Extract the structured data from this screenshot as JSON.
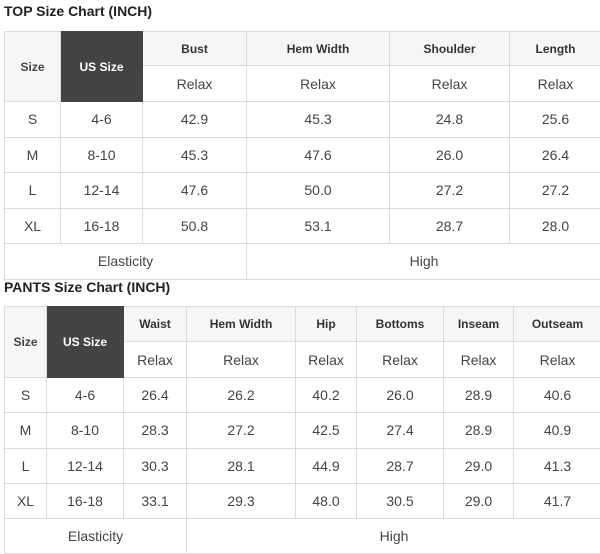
{
  "top": {
    "title": "TOP Size Chart (INCH)",
    "size_label": "Size",
    "us_size_label": "US Size",
    "columns": [
      "Bust",
      "Hem Width",
      "Shoulder",
      "Length"
    ],
    "fit": [
      "Relax",
      "Relax",
      "Relax",
      "Relax"
    ],
    "rows": [
      {
        "size": "S",
        "us": "4-6",
        "values": [
          "42.9",
          "45.3",
          "24.8",
          "25.6"
        ]
      },
      {
        "size": "M",
        "us": "8-10",
        "values": [
          "45.3",
          "47.6",
          "26.0",
          "26.4"
        ]
      },
      {
        "size": "L",
        "us": "12-14",
        "values": [
          "47.6",
          "50.0",
          "27.2",
          "27.2"
        ]
      },
      {
        "size": "XL",
        "us": "16-18",
        "values": [
          "50.8",
          "53.1",
          "28.7",
          "28.0"
        ]
      }
    ],
    "elasticity_label": "Elasticity",
    "elasticity_value": "High"
  },
  "pants": {
    "title": "PANTS Size Chart (INCH)",
    "size_label": "Size",
    "us_size_label": "US Size",
    "columns": [
      "Waist",
      "Hem Width",
      "Hip",
      "Bottoms",
      "Inseam",
      "Outseam"
    ],
    "fit": [
      "Relax",
      "Relax",
      "Relax",
      "Relax",
      "Relax",
      "Relax"
    ],
    "rows": [
      {
        "size": "S",
        "us": "4-6",
        "values": [
          "26.4",
          "26.2",
          "40.2",
          "26.0",
          "28.9",
          "40.6"
        ]
      },
      {
        "size": "M",
        "us": "8-10",
        "values": [
          "28.3",
          "27.2",
          "42.5",
          "27.4",
          "28.9",
          "40.9"
        ]
      },
      {
        "size": "L",
        "us": "12-14",
        "values": [
          "30.3",
          "28.1",
          "44.9",
          "28.7",
          "29.0",
          "41.3"
        ]
      },
      {
        "size": "XL",
        "us": "16-18",
        "values": [
          "33.1",
          "29.3",
          "48.0",
          "30.5",
          "29.0",
          "41.7"
        ]
      }
    ],
    "elasticity_label": "Elasticity",
    "elasticity_value": "High"
  }
}
